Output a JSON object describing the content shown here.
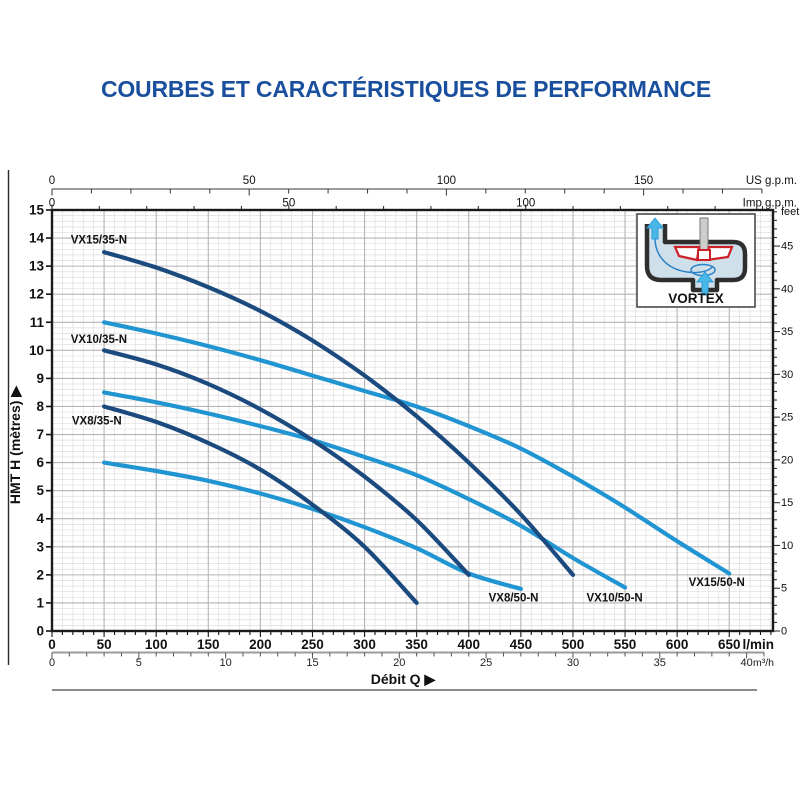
{
  "title": "COURBES ET CARACTÉRISTIQUES DE PERFORMANCE",
  "colors": {
    "title_blue": "#1a4f9e",
    "navy": "#1b4a7e",
    "lightblue": "#2095d2",
    "grid_major": "#b5b5b5",
    "grid_minor": "#dedede",
    "frame": "#1a1a1a",
    "axis_gray": "#9b9b9b",
    "text": "#111111",
    "rule_gray": "#8c8c8c",
    "inset_red": "#cc2027",
    "inset_cyan": "#49b8e8"
  },
  "chart_data": {
    "type": "line",
    "title": "COURBES ET CARACTÉRISTIQUES DE PERFORMANCE",
    "xlabel": "Débit Q  ▶",
    "ylabel": "HMT H (mètres)  ▶",
    "grid": "on",
    "legend": "inline-labels",
    "xlim_lmin": [
      0,
      692
    ],
    "ylim_m": [
      0,
      15
    ],
    "x_axes": {
      "lmin": {
        "unit": "l/min",
        "ticks": [
          0,
          50,
          100,
          150,
          200,
          250,
          300,
          350,
          400,
          450,
          500,
          550,
          600,
          650
        ],
        "minor_step": 10,
        "max": 690,
        "lmin_per_unit": 1
      },
      "m3h": {
        "unit": "m³/h",
        "ticks": [
          0,
          5,
          10,
          15,
          20,
          25,
          30,
          35,
          40
        ],
        "minor_step": 1,
        "max": 41,
        "lmin_per_unit": 16.6667
      },
      "usgpm": {
        "unit": "US g.p.m.",
        "ticks": [
          0,
          50,
          100,
          150
        ],
        "minor_step": 10,
        "max": 180,
        "lmin_per_unit": 3.78541
      },
      "impgpm": {
        "unit": "Imp g.p.m.",
        "ticks": [
          0,
          50,
          100
        ],
        "minor_step": 10,
        "max": 150,
        "lmin_per_unit": 4.54609
      }
    },
    "y_axes": {
      "metres": {
        "unit": "",
        "ticks": [
          0,
          1,
          2,
          3,
          4,
          5,
          6,
          7,
          8,
          9,
          10,
          11,
          12,
          13,
          14,
          15
        ],
        "minor_step": 0.2,
        "max": 15,
        "m_per_unit": 1
      },
      "feet": {
        "unit": "feet",
        "ticks": [
          0,
          5,
          10,
          15,
          20,
          25,
          30,
          35,
          40,
          45
        ],
        "minor_step": 1,
        "max": 49,
        "m_per_unit": 0.3048
      }
    },
    "series": [
      {
        "name": "VX15/50-N",
        "color": "lightblue",
        "label_at": [
          638,
          1.75
        ],
        "points": [
          [
            50,
            11.0
          ],
          [
            100,
            10.6
          ],
          [
            150,
            10.15
          ],
          [
            200,
            9.65
          ],
          [
            250,
            9.1
          ],
          [
            300,
            8.55
          ],
          [
            350,
            8.0
          ],
          [
            400,
            7.3
          ],
          [
            450,
            6.5
          ],
          [
            500,
            5.5
          ],
          [
            550,
            4.4
          ],
          [
            600,
            3.2
          ],
          [
            650,
            2.05
          ]
        ]
      },
      {
        "name": "VX10/50-N",
        "color": "lightblue",
        "label_at": [
          540,
          1.2
        ],
        "points": [
          [
            50,
            8.5
          ],
          [
            100,
            8.15
          ],
          [
            150,
            7.75
          ],
          [
            200,
            7.3
          ],
          [
            250,
            6.8
          ],
          [
            300,
            6.2
          ],
          [
            350,
            5.55
          ],
          [
            400,
            4.7
          ],
          [
            450,
            3.75
          ],
          [
            500,
            2.6
          ],
          [
            550,
            1.55
          ]
        ]
      },
      {
        "name": "VX8/50-N",
        "color": "lightblue",
        "label_at": [
          443,
          1.2
        ],
        "points": [
          [
            50,
            6.0
          ],
          [
            100,
            5.7
          ],
          [
            150,
            5.35
          ],
          [
            200,
            4.9
          ],
          [
            250,
            4.35
          ],
          [
            300,
            3.7
          ],
          [
            350,
            2.95
          ],
          [
            400,
            2.05
          ],
          [
            450,
            1.5
          ]
        ]
      },
      {
        "name": "VX15/35-N",
        "color": "navy",
        "label_at": [
          45,
          13.95
        ],
        "points": [
          [
            50,
            13.5
          ],
          [
            100,
            12.95
          ],
          [
            150,
            12.25
          ],
          [
            200,
            11.4
          ],
          [
            250,
            10.35
          ],
          [
            300,
            9.1
          ],
          [
            350,
            7.65
          ],
          [
            400,
            6.0
          ],
          [
            450,
            4.15
          ],
          [
            500,
            2.0
          ]
        ]
      },
      {
        "name": "VX10/35-N",
        "color": "navy",
        "label_at": [
          45,
          10.4
        ],
        "points": [
          [
            50,
            10.0
          ],
          [
            100,
            9.5
          ],
          [
            150,
            8.8
          ],
          [
            200,
            7.9
          ],
          [
            250,
            6.8
          ],
          [
            300,
            5.5
          ],
          [
            350,
            3.95
          ],
          [
            400,
            2.0
          ]
        ]
      },
      {
        "name": "VX8/35-N",
        "color": "navy",
        "label_at": [
          43,
          7.5
        ],
        "points": [
          [
            50,
            8.0
          ],
          [
            100,
            7.45
          ],
          [
            150,
            6.7
          ],
          [
            200,
            5.75
          ],
          [
            250,
            4.5
          ],
          [
            300,
            3.0
          ],
          [
            350,
            1.0
          ]
        ]
      }
    ],
    "inset": {
      "label": "VORTEX"
    }
  }
}
